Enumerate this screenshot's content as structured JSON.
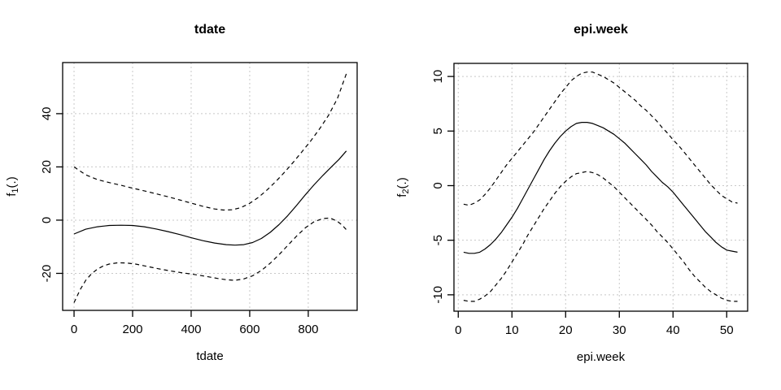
{
  "page": {
    "background": "#ffffff"
  },
  "chart_data": [
    {
      "type": "line",
      "title": "tdate",
      "xlabel": "tdate",
      "ylabel": {
        "prefix": "f",
        "sub": "1",
        "suffix": "(.)"
      },
      "xlim": [
        -39,
        967
      ],
      "ylim": [
        -33.9,
        59.2
      ],
      "x_ticks": [
        0,
        200,
        400,
        600,
        800
      ],
      "y_ticks": [
        -20,
        0,
        20,
        40
      ],
      "grid": true,
      "grid_color": "#c8c8c8",
      "line_color": "#000000",
      "legend": "none",
      "series": [
        {
          "name": "smooth-estimate",
          "style": "solid",
          "points": [
            [
              0,
              -5.2
            ],
            [
              40,
              -3.4
            ],
            [
              80,
              -2.5
            ],
            [
              120,
              -2.0
            ],
            [
              160,
              -1.9
            ],
            [
              200,
              -2.0
            ],
            [
              240,
              -2.5
            ],
            [
              280,
              -3.3
            ],
            [
              320,
              -4.3
            ],
            [
              360,
              -5.4
            ],
            [
              400,
              -6.6
            ],
            [
              440,
              -7.7
            ],
            [
              480,
              -8.6
            ],
            [
              520,
              -9.2
            ],
            [
              550,
              -9.4
            ],
            [
              580,
              -9.2
            ],
            [
              610,
              -8.4
            ],
            [
              640,
              -6.9
            ],
            [
              670,
              -4.6
            ],
            [
              700,
              -1.7
            ],
            [
              730,
              1.7
            ],
            [
              760,
              5.5
            ],
            [
              790,
              9.5
            ],
            [
              820,
              13.3
            ],
            [
              850,
              16.8
            ],
            [
              880,
              20.1
            ],
            [
              905,
              22.8
            ],
            [
              930,
              26.0
            ]
          ]
        },
        {
          "name": "upper-confidence-band",
          "style": "dashed",
          "points": [
            [
              0,
              20.0
            ],
            [
              40,
              17.0
            ],
            [
              80,
              15.2
            ],
            [
              120,
              14.1
            ],
            [
              160,
              13.1
            ],
            [
              200,
              12.0
            ],
            [
              240,
              11.0
            ],
            [
              280,
              9.9
            ],
            [
              320,
              8.8
            ],
            [
              360,
              7.6
            ],
            [
              400,
              6.4
            ],
            [
              440,
              5.2
            ],
            [
              480,
              4.2
            ],
            [
              510,
              3.8
            ],
            [
              540,
              3.9
            ],
            [
              570,
              4.7
            ],
            [
              600,
              6.3
            ],
            [
              630,
              8.6
            ],
            [
              660,
              11.4
            ],
            [
              690,
              14.6
            ],
            [
              720,
              18.1
            ],
            [
              750,
              21.9
            ],
            [
              780,
              25.9
            ],
            [
              810,
              30.0
            ],
            [
              840,
              34.5
            ],
            [
              870,
              39.5
            ],
            [
              900,
              45.8
            ],
            [
              930,
              55.0
            ]
          ]
        },
        {
          "name": "lower-confidence-band",
          "style": "dashed",
          "points": [
            [
              0,
              -31.0
            ],
            [
              20,
              -26.3
            ],
            [
              40,
              -22.6
            ],
            [
              60,
              -20.1
            ],
            [
              80,
              -18.4
            ],
            [
              100,
              -17.2
            ],
            [
              120,
              -16.5
            ],
            [
              150,
              -16.0
            ],
            [
              180,
              -16.1
            ],
            [
              210,
              -16.5
            ],
            [
              250,
              -17.4
            ],
            [
              290,
              -18.3
            ],
            [
              330,
              -19.1
            ],
            [
              370,
              -19.8
            ],
            [
              410,
              -20.4
            ],
            [
              450,
              -21.1
            ],
            [
              490,
              -21.9
            ],
            [
              520,
              -22.4
            ],
            [
              550,
              -22.6
            ],
            [
              580,
              -22.1
            ],
            [
              610,
              -20.9
            ],
            [
              640,
              -18.9
            ],
            [
              670,
              -16.2
            ],
            [
              700,
              -13.0
            ],
            [
              730,
              -9.5
            ],
            [
              760,
              -6.0
            ],
            [
              790,
              -2.9
            ],
            [
              820,
              -0.6
            ],
            [
              850,
              0.6
            ],
            [
              875,
              0.8
            ],
            [
              900,
              -0.5
            ],
            [
              915,
              -1.8
            ],
            [
              930,
              -3.6
            ]
          ]
        }
      ]
    },
    {
      "type": "line",
      "title": "epi.week",
      "xlabel": "epi.week",
      "ylabel": {
        "prefix": "f",
        "sub": "2",
        "suffix": "(.)"
      },
      "xlim": [
        -0.8,
        53.9
      ],
      "ylim": [
        -11.5,
        11.2
      ],
      "x_ticks": [
        0,
        10,
        20,
        30,
        40,
        50
      ],
      "y_ticks": [
        -10,
        -5,
        0,
        5,
        10
      ],
      "grid": true,
      "grid_color": "#c8c8c8",
      "line_color": "#000000",
      "legend": "none",
      "series": [
        {
          "name": "smooth-estimate",
          "style": "solid",
          "points": [
            [
              1,
              -6.1
            ],
            [
              2,
              -6.2
            ],
            [
              3,
              -6.2
            ],
            [
              4,
              -6.1
            ],
            [
              5,
              -5.8
            ],
            [
              6,
              -5.4
            ],
            [
              7,
              -4.9
            ],
            [
              8,
              -4.3
            ],
            [
              9,
              -3.6
            ],
            [
              10,
              -2.9
            ],
            [
              11,
              -2.1
            ],
            [
              12,
              -1.2
            ],
            [
              13,
              -0.3
            ],
            [
              14,
              0.6
            ],
            [
              15,
              1.5
            ],
            [
              16,
              2.4
            ],
            [
              17,
              3.2
            ],
            [
              18,
              3.9
            ],
            [
              19,
              4.5
            ],
            [
              20,
              5.0
            ],
            [
              21,
              5.4
            ],
            [
              22,
              5.7
            ],
            [
              23,
              5.8
            ],
            [
              24,
              5.8
            ],
            [
              25,
              5.7
            ],
            [
              26,
              5.5
            ],
            [
              27,
              5.3
            ],
            [
              28,
              5.0
            ],
            [
              29,
              4.7
            ],
            [
              30,
              4.3
            ],
            [
              31,
              3.9
            ],
            [
              32,
              3.4
            ],
            [
              33,
              2.9
            ],
            [
              34,
              2.4
            ],
            [
              35,
              1.9
            ],
            [
              36,
              1.3
            ],
            [
              37,
              0.8
            ],
            [
              38,
              0.3
            ],
            [
              39,
              -0.1
            ],
            [
              40,
              -0.6
            ],
            [
              41,
              -1.2
            ],
            [
              42,
              -1.8
            ],
            [
              43,
              -2.4
            ],
            [
              44,
              -3.0
            ],
            [
              45,
              -3.6
            ],
            [
              46,
              -4.2
            ],
            [
              47,
              -4.7
            ],
            [
              48,
              -5.2
            ],
            [
              49,
              -5.6
            ],
            [
              50,
              -5.9
            ],
            [
              51,
              -6.0
            ],
            [
              52,
              -6.1
            ]
          ]
        },
        {
          "name": "upper-confidence-band",
          "style": "dashed",
          "points": [
            [
              1,
              -1.7
            ],
            [
              2,
              -1.8
            ],
            [
              3,
              -1.6
            ],
            [
              4,
              -1.3
            ],
            [
              5,
              -0.8
            ],
            [
              6,
              -0.2
            ],
            [
              7,
              0.5
            ],
            [
              8,
              1.2
            ],
            [
              9,
              1.9
            ],
            [
              10,
              2.5
            ],
            [
              11,
              3.1
            ],
            [
              12,
              3.7
            ],
            [
              13,
              4.3
            ],
            [
              14,
              4.9
            ],
            [
              15,
              5.6
            ],
            [
              16,
              6.3
            ],
            [
              17,
              7.0
            ],
            [
              18,
              7.7
            ],
            [
              19,
              8.4
            ],
            [
              20,
              9.0
            ],
            [
              21,
              9.6
            ],
            [
              22,
              10.0
            ],
            [
              23,
              10.3
            ],
            [
              24,
              10.4
            ],
            [
              25,
              10.4
            ],
            [
              26,
              10.2
            ],
            [
              27,
              10.0
            ],
            [
              28,
              9.7
            ],
            [
              29,
              9.4
            ],
            [
              30,
              9.0
            ],
            [
              31,
              8.6
            ],
            [
              32,
              8.2
            ],
            [
              33,
              7.8
            ],
            [
              34,
              7.3
            ],
            [
              35,
              6.9
            ],
            [
              36,
              6.4
            ],
            [
              37,
              5.9
            ],
            [
              38,
              5.3
            ],
            [
              39,
              4.8
            ],
            [
              40,
              4.2
            ],
            [
              41,
              3.7
            ],
            [
              42,
              3.1
            ],
            [
              43,
              2.5
            ],
            [
              44,
              1.9
            ],
            [
              45,
              1.3
            ],
            [
              46,
              0.7
            ],
            [
              47,
              0.1
            ],
            [
              48,
              -0.4
            ],
            [
              49,
              -0.9
            ],
            [
              50,
              -1.2
            ],
            [
              51,
              -1.5
            ],
            [
              52,
              -1.6
            ]
          ]
        },
        {
          "name": "lower-confidence-band",
          "style": "dashed",
          "points": [
            [
              1,
              -10.5
            ],
            [
              2,
              -10.6
            ],
            [
              3,
              -10.6
            ],
            [
              4,
              -10.4
            ],
            [
              5,
              -10.1
            ],
            [
              6,
              -9.7
            ],
            [
              7,
              -9.1
            ],
            [
              8,
              -8.5
            ],
            [
              9,
              -7.8
            ],
            [
              10,
              -7.0
            ],
            [
              11,
              -6.2
            ],
            [
              12,
              -5.4
            ],
            [
              13,
              -4.5
            ],
            [
              14,
              -3.7
            ],
            [
              15,
              -2.9
            ],
            [
              16,
              -2.1
            ],
            [
              17,
              -1.4
            ],
            [
              18,
              -0.7
            ],
            [
              19,
              -0.1
            ],
            [
              20,
              0.4
            ],
            [
              21,
              0.8
            ],
            [
              22,
              1.1
            ],
            [
              23,
              1.2
            ],
            [
              24,
              1.3
            ],
            [
              25,
              1.2
            ],
            [
              26,
              1.0
            ],
            [
              27,
              0.7
            ],
            [
              28,
              0.3
            ],
            [
              29,
              -0.1
            ],
            [
              30,
              -0.6
            ],
            [
              31,
              -1.1
            ],
            [
              32,
              -1.6
            ],
            [
              33,
              -2.1
            ],
            [
              34,
              -2.6
            ],
            [
              35,
              -3.1
            ],
            [
              36,
              -3.6
            ],
            [
              37,
              -4.2
            ],
            [
              38,
              -4.7
            ],
            [
              39,
              -5.2
            ],
            [
              40,
              -5.8
            ],
            [
              41,
              -6.4
            ],
            [
              42,
              -7.0
            ],
            [
              43,
              -7.7
            ],
            [
              44,
              -8.3
            ],
            [
              45,
              -8.8
            ],
            [
              46,
              -9.3
            ],
            [
              47,
              -9.7
            ],
            [
              48,
              -10.0
            ],
            [
              49,
              -10.3
            ],
            [
              50,
              -10.5
            ],
            [
              51,
              -10.6
            ],
            [
              52,
              -10.6
            ]
          ]
        }
      ]
    }
  ]
}
